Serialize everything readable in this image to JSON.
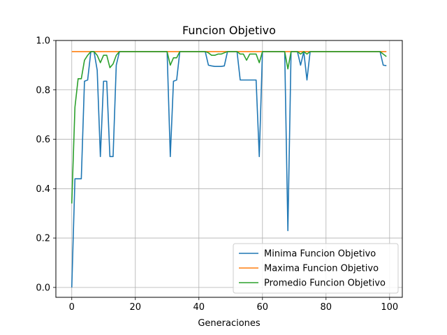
{
  "chart_data": {
    "type": "line",
    "title": "Funcion Objetivo",
    "xlabel": "Generaciones",
    "ylabel": "",
    "xlim": [
      -5,
      104
    ],
    "ylim": [
      -0.04,
      1.0
    ],
    "xticks": [
      0,
      20,
      40,
      60,
      80,
      100
    ],
    "yticks": [
      0.0,
      0.2,
      0.4,
      0.6,
      0.8,
      1.0
    ],
    "xtick_labels": [
      "0",
      "20",
      "40",
      "60",
      "80",
      "100"
    ],
    "ytick_labels": [
      "0.0",
      "0.2",
      "0.4",
      "0.6",
      "0.8",
      "1.0"
    ],
    "grid": true,
    "legend_position": "bottom-right",
    "series": [
      {
        "name": "Minima Funcion Objetivo",
        "color": "#1f77b4",
        "x": [
          0,
          1,
          2,
          3,
          4,
          5,
          6,
          7,
          8,
          9,
          10,
          11,
          12,
          13,
          14,
          15,
          16,
          17,
          18,
          19,
          20,
          21,
          22,
          23,
          24,
          25,
          26,
          27,
          28,
          29,
          30,
          31,
          32,
          33,
          34,
          35,
          36,
          37,
          38,
          39,
          40,
          41,
          42,
          43,
          44,
          45,
          46,
          47,
          48,
          49,
          50,
          51,
          52,
          53,
          54,
          55,
          56,
          57,
          58,
          59,
          60,
          61,
          62,
          63,
          64,
          65,
          66,
          67,
          68,
          69,
          70,
          71,
          72,
          73,
          74,
          75,
          76,
          77,
          78,
          79,
          80,
          81,
          82,
          83,
          84,
          85,
          86,
          87,
          88,
          89,
          90,
          91,
          92,
          93,
          94,
          95,
          96,
          97,
          98,
          99
        ],
        "values": [
          0.0,
          0.44,
          0.44,
          0.44,
          0.835,
          0.84,
          0.955,
          0.955,
          0.88,
          0.53,
          0.835,
          0.835,
          0.53,
          0.53,
          0.9,
          0.955,
          0.955,
          0.955,
          0.955,
          0.955,
          0.955,
          0.955,
          0.955,
          0.955,
          0.955,
          0.955,
          0.955,
          0.955,
          0.955,
          0.955,
          0.955,
          0.53,
          0.835,
          0.84,
          0.955,
          0.955,
          0.955,
          0.955,
          0.955,
          0.955,
          0.955,
          0.955,
          0.955,
          0.9,
          0.897,
          0.895,
          0.895,
          0.895,
          0.897,
          0.955,
          0.955,
          0.955,
          0.955,
          0.84,
          0.84,
          0.84,
          0.84,
          0.84,
          0.84,
          0.53,
          0.955,
          0.955,
          0.955,
          0.955,
          0.955,
          0.955,
          0.955,
          0.955,
          0.23,
          0.955,
          0.955,
          0.955,
          0.9,
          0.955,
          0.84,
          0.955,
          0.955,
          0.955,
          0.955,
          0.955,
          0.955,
          0.955,
          0.955,
          0.955,
          0.955,
          0.955,
          0.955,
          0.955,
          0.955,
          0.955,
          0.955,
          0.955,
          0.955,
          0.955,
          0.955,
          0.955,
          0.955,
          0.955,
          0.9,
          0.898
        ]
      },
      {
        "name": "Maxima Funcion Objetivo",
        "color": "#ff7f0e",
        "x": [
          0,
          99
        ],
        "values": [
          0.955,
          0.955
        ]
      },
      {
        "name": "Promedio Funcion Objetivo",
        "color": "#2ca02c",
        "x": [
          0,
          1,
          2,
          3,
          4,
          5,
          6,
          7,
          8,
          9,
          10,
          11,
          12,
          13,
          14,
          15,
          16,
          17,
          18,
          19,
          20,
          21,
          22,
          23,
          24,
          25,
          26,
          27,
          28,
          29,
          30,
          31,
          32,
          33,
          34,
          35,
          36,
          37,
          38,
          39,
          40,
          41,
          42,
          43,
          44,
          45,
          46,
          47,
          48,
          49,
          50,
          51,
          52,
          53,
          54,
          55,
          56,
          57,
          58,
          59,
          60,
          61,
          62,
          63,
          64,
          65,
          66,
          67,
          68,
          69,
          70,
          71,
          72,
          73,
          74,
          75,
          76,
          77,
          78,
          79,
          80,
          81,
          82,
          83,
          84,
          85,
          86,
          87,
          88,
          89,
          90,
          91,
          92,
          93,
          94,
          95,
          96,
          97,
          98,
          99
        ],
        "values": [
          0.34,
          0.73,
          0.845,
          0.845,
          0.92,
          0.94,
          0.955,
          0.955,
          0.94,
          0.91,
          0.94,
          0.94,
          0.89,
          0.905,
          0.94,
          0.955,
          0.955,
          0.955,
          0.955,
          0.955,
          0.955,
          0.955,
          0.955,
          0.955,
          0.955,
          0.955,
          0.955,
          0.955,
          0.955,
          0.955,
          0.955,
          0.9,
          0.93,
          0.93,
          0.955,
          0.955,
          0.955,
          0.955,
          0.955,
          0.955,
          0.955,
          0.955,
          0.955,
          0.95,
          0.94,
          0.94,
          0.945,
          0.945,
          0.95,
          0.955,
          0.955,
          0.955,
          0.955,
          0.945,
          0.945,
          0.92,
          0.945,
          0.945,
          0.945,
          0.91,
          0.955,
          0.955,
          0.955,
          0.955,
          0.955,
          0.955,
          0.955,
          0.955,
          0.885,
          0.955,
          0.955,
          0.955,
          0.945,
          0.955,
          0.945,
          0.955,
          0.955,
          0.955,
          0.955,
          0.955,
          0.955,
          0.955,
          0.955,
          0.955,
          0.955,
          0.955,
          0.955,
          0.955,
          0.955,
          0.955,
          0.955,
          0.955,
          0.955,
          0.955,
          0.955,
          0.955,
          0.955,
          0.955,
          0.945,
          0.935
        ]
      }
    ]
  }
}
